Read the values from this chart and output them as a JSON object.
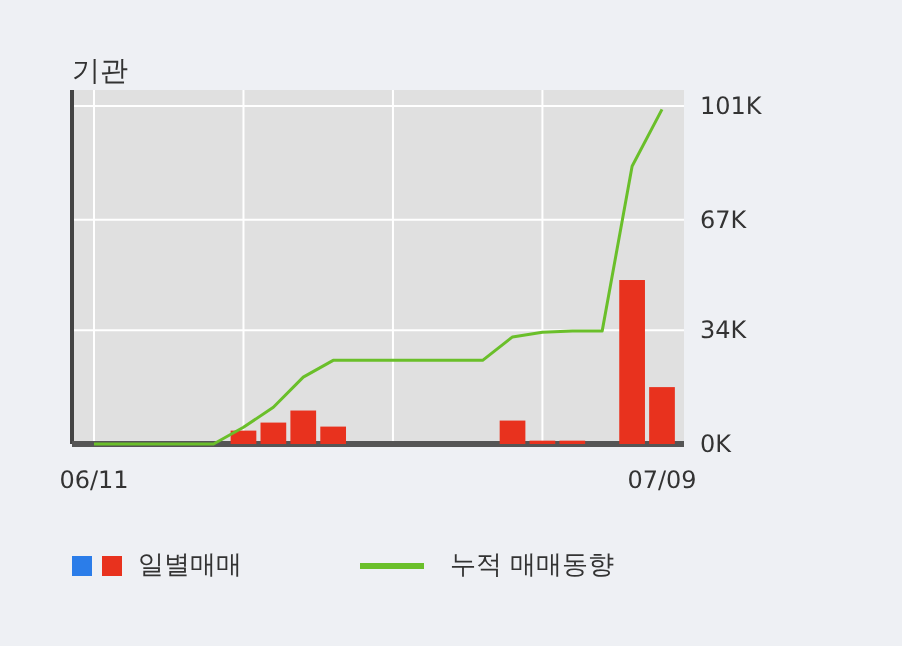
{
  "chart_data": {
    "type": "bar",
    "title": "기관",
    "categories": [
      "06/11",
      null,
      null,
      null,
      null,
      null,
      null,
      null,
      null,
      null,
      null,
      null,
      null,
      null,
      null,
      null,
      null,
      null,
      null,
      "07/09"
    ],
    "series": [
      {
        "name": "일별매매",
        "type": "bar",
        "color": "#e8321e",
        "values": [
          null,
          null,
          null,
          null,
          null,
          4,
          6.4,
          10,
          5.2,
          null,
          null,
          null,
          null,
          null,
          7,
          1,
          1,
          null,
          49,
          17
        ]
      },
      {
        "name": "누적 매매동향",
        "type": "line",
        "color": "#6abf2a",
        "values": [
          0,
          0,
          0,
          0,
          0,
          5,
          11,
          20,
          25,
          25,
          25,
          25,
          25,
          25,
          32,
          33.4,
          33.8,
          33.8,
          83,
          100
        ]
      }
    ],
    "ylim": [
      0,
      101
    ],
    "yticks": [
      {
        "value": 0,
        "label": "0K"
      },
      {
        "value": 34,
        "label": "34K"
      },
      {
        "value": 67,
        "label": "67K"
      },
      {
        "value": 101,
        "label": "101K"
      }
    ],
    "grid": true,
    "legend": "bottom"
  }
}
